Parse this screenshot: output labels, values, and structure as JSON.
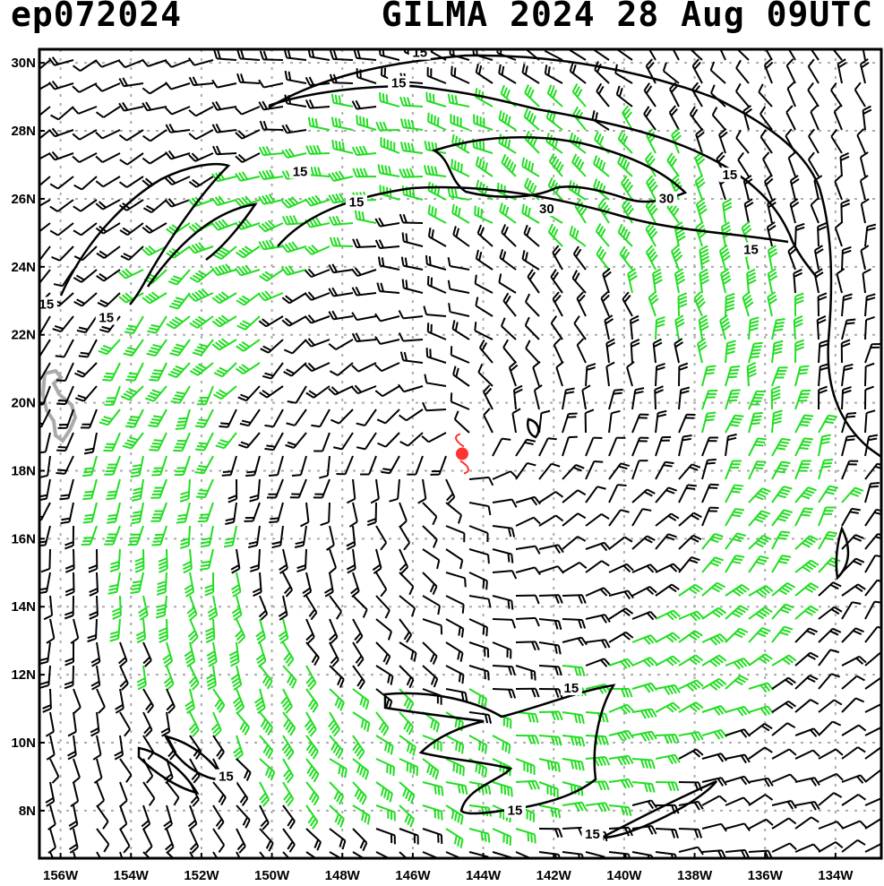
{
  "header": {
    "storm_id": "ep072024",
    "title": "GILMA 2024 28 Aug 09UTC"
  },
  "map": {
    "lon_range": [
      -156.6,
      -132.7
    ],
    "lat_range": [
      6.6,
      30.4
    ],
    "lat_ticks": [
      "30N",
      "28N",
      "26N",
      "24N",
      "22N",
      "20N",
      "18N",
      "16N",
      "14N",
      "12N",
      "10N",
      "8N"
    ],
    "lon_ticks": [
      "156W",
      "154W",
      "152W",
      "150W",
      "148W",
      "146W",
      "144W",
      "142W",
      "140W",
      "138W",
      "136W",
      "134W"
    ],
    "storm_center": {
      "lon": -144.6,
      "lat": 18.5
    },
    "contour_labels": [
      {
        "text": "15",
        "lon": -145.8,
        "lat": 30.2
      },
      {
        "text": "15",
        "lon": -146.4,
        "lat": 29.3
      },
      {
        "text": "15",
        "lon": -149.2,
        "lat": 26.7
      },
      {
        "text": "15",
        "lon": -147.6,
        "lat": 25.8
      },
      {
        "text": "30",
        "lon": -142.2,
        "lat": 25.6
      },
      {
        "text": "30",
        "lon": -138.8,
        "lat": 25.9
      },
      {
        "text": "15",
        "lon": -137.0,
        "lat": 26.6
      },
      {
        "text": "15",
        "lon": -136.4,
        "lat": 24.4
      },
      {
        "text": "15",
        "lon": -156.4,
        "lat": 22.8
      },
      {
        "text": "15",
        "lon": -154.7,
        "lat": 22.4
      },
      {
        "text": "15",
        "lon": -141.5,
        "lat": 11.5
      },
      {
        "text": "15",
        "lon": -151.3,
        "lat": 8.9
      },
      {
        "text": "15",
        "lon": -143.1,
        "lat": 7.9
      },
      {
        "text": "15",
        "lon": -140.9,
        "lat": 7.2
      }
    ],
    "colors": {
      "below_15kt": "#000000",
      "kt_15_30": "#22dd22",
      "kt_30_45": "#e8a030",
      "kt_45_plus": "#e06020",
      "storm_marker": "#ff3333",
      "grid": "#aaaaaa",
      "land": "#aaaaaa"
    }
  }
}
